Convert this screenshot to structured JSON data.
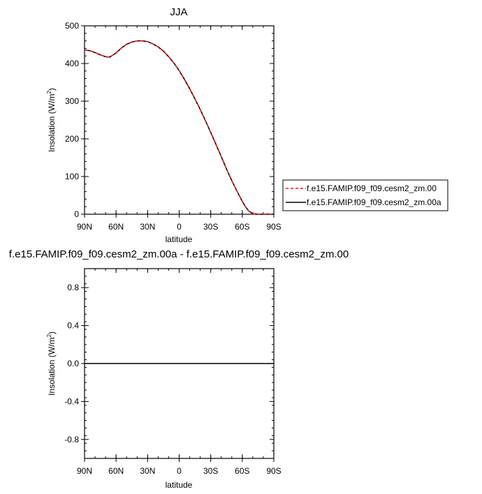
{
  "chart_data": [
    {
      "type": "line",
      "title": "JJA",
      "xlabel": "latitude",
      "ylabel": "Insolation (W/m",
      "ylabel_sup": "2",
      "ylabel_tail": ")",
      "x_tick_labels": [
        "90N",
        "60N",
        "30N",
        "0",
        "30S",
        "60S",
        "90S"
      ],
      "x_tick_values": [
        90,
        60,
        30,
        0,
        -30,
        -60,
        -90
      ],
      "xlim": [
        90,
        -90
      ],
      "ylim": [
        0,
        500
      ],
      "y_ticks": [
        0,
        100,
        200,
        300,
        400,
        500
      ],
      "y_tick_labels": [
        "0",
        "100",
        "200",
        "300",
        "400",
        "500"
      ],
      "x": [
        90,
        85,
        80,
        75,
        70,
        66,
        60,
        55,
        50,
        45,
        40,
        35,
        30,
        25,
        20,
        15,
        10,
        5,
        0,
        -5,
        -10,
        -15,
        -20,
        -25,
        -30,
        -35,
        -40,
        -45,
        -50,
        -55,
        -60,
        -63,
        -66,
        -69,
        -72,
        -75,
        -80,
        -85,
        -90
      ],
      "series": [
        {
          "name": "f.e15.FAMIP.f09_f09.cesm2_zm.00",
          "color": "#e02020",
          "dash": "dashed",
          "values": [
            436,
            434,
            429,
            423,
            418,
            417,
            428,
            441,
            451,
            457,
            460,
            460,
            458,
            452,
            444,
            433,
            418,
            401,
            381,
            358,
            333,
            306,
            278,
            248,
            217,
            185,
            153,
            120,
            89,
            61,
            34,
            20,
            9,
            3,
            0.5,
            0,
            0,
            0,
            0
          ]
        },
        {
          "name": "f.e15.FAMIP.f09_f09.cesm2_zm.00a",
          "color": "#000000",
          "dash": "solid",
          "values": [
            436,
            434,
            429,
            423,
            418,
            417,
            428,
            441,
            451,
            457,
            460,
            460,
            458,
            452,
            444,
            433,
            418,
            401,
            381,
            358,
            333,
            306,
            278,
            248,
            217,
            185,
            153,
            120,
            89,
            61,
            34,
            20,
            9,
            3,
            0.5,
            0,
            0,
            0,
            0
          ]
        }
      ],
      "legend_position": "right"
    },
    {
      "type": "line",
      "title": "f.e15.FAMIP.f09_f09.cesm2_zm.00a - f.e15.FAMIP.f09_f09.cesm2_zm.00",
      "xlabel": "latitude",
      "ylabel": "Insolation (W/m",
      "ylabel_sup": "2",
      "ylabel_tail": ")",
      "x_tick_labels": [
        "90N",
        "60N",
        "30N",
        "0",
        "30S",
        "60S",
        "90S"
      ],
      "x_tick_values": [
        90,
        60,
        30,
        0,
        -30,
        -60,
        -90
      ],
      "xlim": [
        90,
        -90
      ],
      "ylim": [
        -1,
        1
      ],
      "y_ticks": [
        -0.8,
        -0.4,
        0.0,
        0.4,
        0.8
      ],
      "y_tick_labels": [
        "-0.8",
        "-0.4",
        "0.0",
        "0.4",
        "0.8"
      ],
      "x": [
        90,
        -90
      ],
      "series": [
        {
          "color": "#000000",
          "dash": "solid",
          "values": [
            0,
            0
          ]
        }
      ]
    }
  ]
}
